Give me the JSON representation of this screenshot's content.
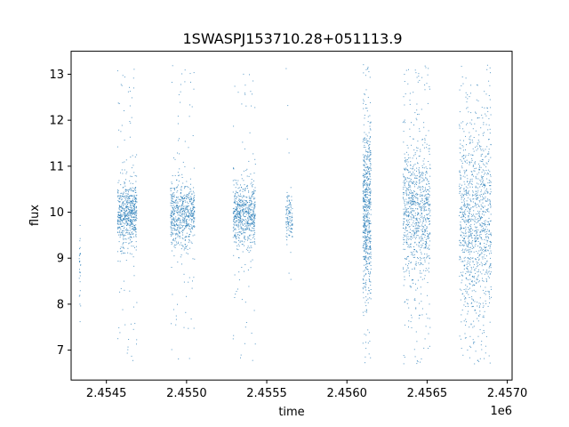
{
  "chart_data": {
    "type": "scatter",
    "title": "1SWASPJ153710.28+051113.9",
    "xlabel": "time",
    "ylabel": "flux",
    "x_offset_label": "1e6",
    "xlim": [
      2454280,
      2457030
    ],
    "ylim": [
      6.35,
      13.5
    ],
    "xticks": [
      2454500,
      2455000,
      2455500,
      2456000,
      2456500,
      2457000
    ],
    "xtick_labels": [
      "2.4545",
      "2.4550",
      "2.4555",
      "2.4560",
      "2.4565",
      "2.4570"
    ],
    "yticks": [
      7,
      8,
      9,
      10,
      11,
      12,
      13
    ],
    "ytick_labels": [
      "7",
      "8",
      "9",
      "10",
      "11",
      "12",
      "13"
    ],
    "grid": false,
    "marker_color": "#1f77b4",
    "series": [
      {
        "name": "",
        "clusters": [
          {
            "t_start": 2454330,
            "t_end": 2454340,
            "center": 8.8,
            "spread": 0.45,
            "n": 30,
            "outlier_frac": 0.0
          },
          {
            "t_start": 2454570,
            "t_end": 2454690,
            "center": 9.95,
            "spread": 0.35,
            "n": 650,
            "outlier_frac": 0.12
          },
          {
            "t_start": 2454900,
            "t_end": 2455050,
            "center": 9.95,
            "spread": 0.35,
            "n": 650,
            "outlier_frac": 0.14
          },
          {
            "t_start": 2455290,
            "t_end": 2455430,
            "center": 9.95,
            "spread": 0.35,
            "n": 650,
            "outlier_frac": 0.12
          },
          {
            "t_start": 2455620,
            "t_end": 2455660,
            "center": 9.9,
            "spread": 0.25,
            "n": 120,
            "outlier_frac": 0.05
          },
          {
            "t_start": 2456100,
            "t_end": 2456150,
            "center": 10.0,
            "spread": 0.9,
            "n": 650,
            "outlier_frac": 0.15
          },
          {
            "t_start": 2456350,
            "t_end": 2456520,
            "center": 10.0,
            "spread": 0.7,
            "n": 900,
            "outlier_frac": 0.2
          },
          {
            "t_start": 2456700,
            "t_end": 2456900,
            "center": 9.8,
            "spread": 1.0,
            "n": 1100,
            "outlier_frac": 0.2
          }
        ]
      }
    ]
  }
}
